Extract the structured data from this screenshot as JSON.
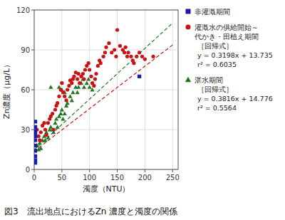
{
  "chart_data": {
    "type": "scatter",
    "title": "図3　流出地点におけるZn 濃度と濁度の関係",
    "x_label": "濁度（NTU）",
    "y_label": "Zn濃度（μg/L）",
    "xlim": [
      0,
      260
    ],
    "ylim": [
      0,
      120
    ],
    "xticks": [
      0,
      50,
      100,
      150,
      200,
      250
    ],
    "yticks": [
      0,
      30,
      60,
      90,
      120
    ],
    "grid": true,
    "series": [
      {
        "name": "非灌漑期間",
        "color": "#1919AA",
        "marker": "square",
        "x": [
          2,
          2,
          2,
          2,
          2,
          2,
          2,
          2,
          2,
          2,
          2,
          190
        ],
        "values": [
          36,
          32,
          29,
          27,
          25,
          22,
          18,
          14,
          10,
          7,
          5,
          70
        ]
      },
      {
        "name": [
          "灌漑水の供給開始～",
          "代かき・田植え期間"
        ],
        "color": "#CC1111",
        "marker": "circle",
        "x": [
          5,
          8,
          10,
          12,
          15,
          18,
          20,
          22,
          25,
          28,
          30,
          33,
          35,
          38,
          40,
          42,
          45,
          48,
          50,
          52,
          55,
          58,
          60,
          63,
          65,
          68,
          70,
          72,
          75,
          78,
          80,
          82,
          85,
          88,
          90,
          92,
          95,
          98,
          100,
          103,
          105,
          108,
          110,
          112,
          115,
          118,
          120,
          125,
          128,
          130,
          135,
          140,
          145,
          148,
          150,
          155,
          160,
          163,
          165,
          168,
          170,
          175,
          178,
          180,
          185,
          190,
          195,
          200,
          215
        ],
        "values": [
          30,
          25,
          22,
          28,
          33,
          35,
          30,
          26,
          35,
          38,
          40,
          42,
          30,
          45,
          48,
          50,
          55,
          60,
          65,
          58,
          55,
          52,
          60,
          63,
          67,
          65,
          68,
          70,
          73,
          68,
          72,
          65,
          70,
          72,
          68,
          75,
          78,
          80,
          75,
          70,
          65,
          63,
          68,
          72,
          78,
          82,
          80,
          85,
          88,
          92,
          95,
          88,
          90,
          85,
          105,
          93,
          90,
          88,
          92,
          85,
          88,
          85,
          82,
          80,
          85,
          88,
          85,
          83,
          85
        ],
        "regression": {
          "label": "［回帰式］",
          "slope": 0.3198,
          "intercept": 13.735,
          "x_range": [
            0,
            250
          ],
          "line_style": "dashed",
          "equation_label": "y = 0.3198x + 13.735",
          "r2_label": "r² = 0.6035"
        }
      },
      {
        "name": "湛水期間",
        "color": "#227722",
        "marker": "triangle",
        "x": [
          5,
          8,
          10,
          12,
          15,
          18,
          20,
          22,
          25,
          28,
          30,
          33,
          35,
          38,
          40,
          42,
          45,
          48,
          50,
          52,
          55,
          58,
          60,
          65,
          68,
          70,
          75,
          78,
          80,
          85,
          88,
          90,
          95,
          98,
          100,
          105,
          45,
          50,
          55,
          30
        ],
        "values": [
          18,
          15,
          20,
          16,
          22,
          25,
          22,
          28,
          24,
          30,
          32,
          30,
          28,
          35,
          38,
          32,
          40,
          42,
          45,
          38,
          42,
          48,
          50,
          55,
          52,
          58,
          62,
          58,
          62,
          65,
          68,
          62,
          65,
          68,
          62,
          60,
          62,
          60,
          58,
          62
        ],
        "regression": {
          "label": "［回帰式］",
          "slope": 0.3816,
          "intercept": 14.776,
          "x_range": [
            0,
            250
          ],
          "line_style": "dashed",
          "equation_label": "y = 0.3816x + 14.776",
          "r2_label": "r² = 0.5564"
        }
      }
    ]
  }
}
